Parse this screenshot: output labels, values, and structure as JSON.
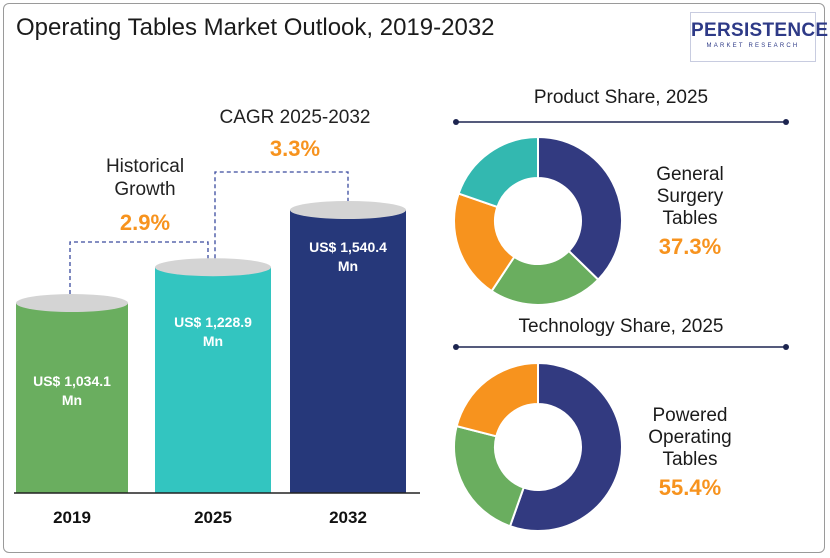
{
  "title": "Operating Tables Market Outlook, 2019-2032",
  "logo": {
    "main": "PERSISTENCE",
    "sub": "MARKET RESEARCH"
  },
  "annotations": {
    "historical_label_line1": "Historical",
    "historical_label_line2": "Growth",
    "historical_value": "2.9%",
    "cagr_label": "CAGR 2025-2032",
    "cagr_value": "3.3%"
  },
  "colors": {
    "bar_2019": "#6aae5f",
    "bar_2025": "#33c5c0",
    "bar_2032": "#26387a",
    "cap": "#d4d4d4",
    "accent": "#f7931e",
    "segment_navy": "#323a80",
    "segment_green": "#6aae5f",
    "segment_orange": "#f7931e",
    "segment_teal": "#33b8b0"
  },
  "chart_data": [
    {
      "type": "bar",
      "categories": [
        "2019",
        "2025",
        "2032"
      ],
      "values": [
        1034.1,
        1228.9,
        1540.4
      ],
      "value_labels": [
        "US$ 1,034.1",
        "US$ 1,228.9",
        "US$ 1,540.4"
      ],
      "unit_label": "Mn",
      "title": "",
      "xlabel": "",
      "ylabel": ""
    },
    {
      "type": "pie",
      "title": "Product Share, 2025",
      "highlight_label": [
        "General",
        "Surgery",
        "Tables"
      ],
      "highlight_value": "37.3%",
      "slices": [
        {
          "value": 37.3,
          "color": "#323a80"
        },
        {
          "value": 22.0,
          "color": "#6aae5f"
        },
        {
          "value": 21.0,
          "color": "#f7931e"
        },
        {
          "value": 19.7,
          "color": "#33b8b0"
        }
      ]
    },
    {
      "type": "pie",
      "title": "Technology Share, 2025",
      "highlight_label": [
        "Powered",
        "Operating",
        "Tables"
      ],
      "highlight_value": "55.4%",
      "slices": [
        {
          "value": 55.4,
          "color": "#323a80"
        },
        {
          "value": 23.6,
          "color": "#6aae5f"
        },
        {
          "value": 21.0,
          "color": "#f7931e"
        }
      ]
    }
  ]
}
